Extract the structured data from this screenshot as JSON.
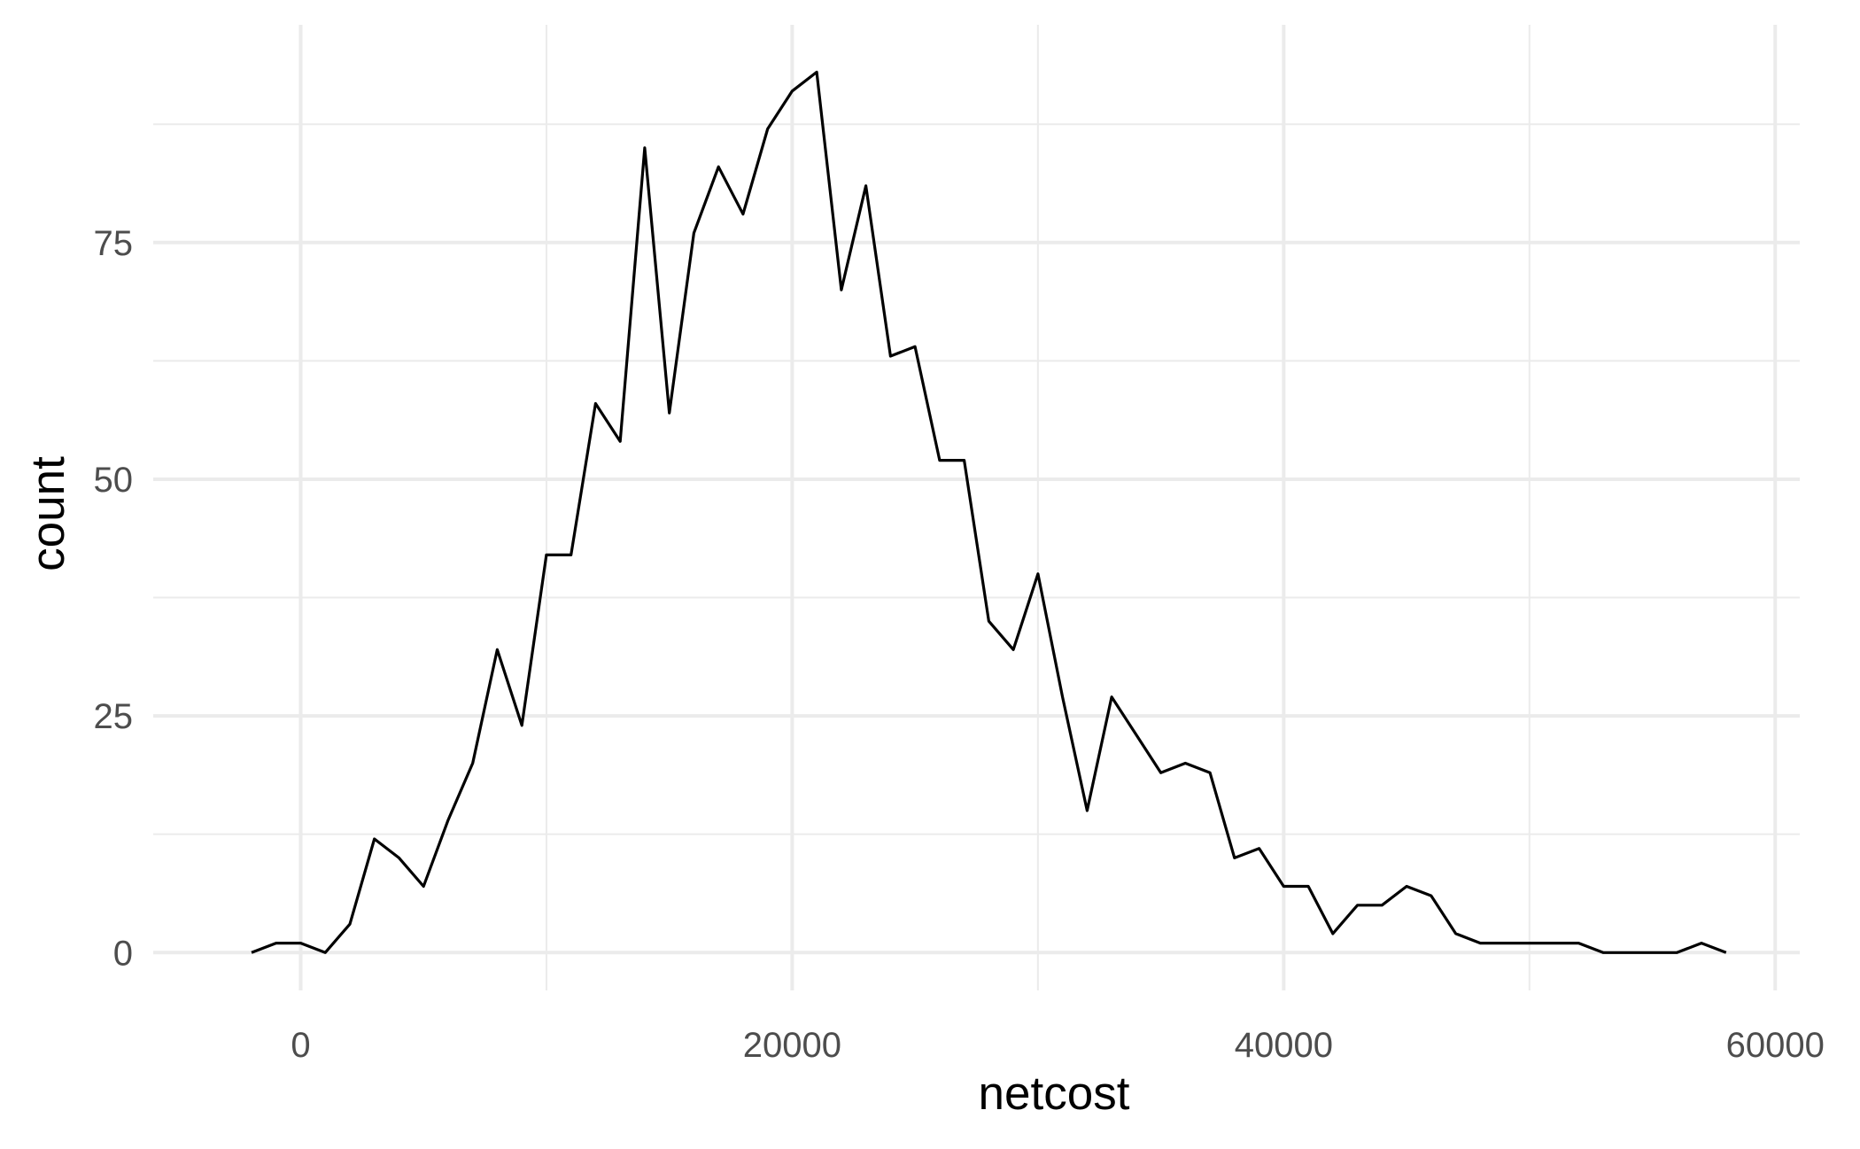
{
  "chart_data": {
    "type": "line",
    "title": "",
    "xlabel": "netcost",
    "ylabel": "count",
    "xlim": [
      -6000,
      61000
    ],
    "ylim": [
      -4,
      98
    ],
    "x_ticks": [
      0,
      20000,
      40000,
      60000
    ],
    "x_tick_labels": [
      "0",
      "20000",
      "40000",
      "60000"
    ],
    "x_minor_ticks": [
      10000,
      30000,
      50000
    ],
    "y_ticks": [
      0,
      25,
      50,
      75
    ],
    "y_tick_labels": [
      "0",
      "25",
      "50",
      "75"
    ],
    "y_minor_ticks": [
      12.5,
      37.5,
      62.5,
      87.5
    ],
    "grid": true,
    "legend": "none",
    "line_color": "#000000",
    "grid_color": "#ebebeb",
    "series": [
      {
        "x": [
          -2000,
          -1000,
          0,
          1000,
          2000,
          3000,
          4000,
          5000,
          6000,
          7000,
          8000,
          9000,
          10000,
          11000,
          12000,
          13000,
          14000,
          15000,
          16000,
          17000,
          18000,
          19000,
          20000,
          21000,
          22000,
          23000,
          24000,
          25000,
          26000,
          27000,
          28000,
          29000,
          30000,
          31000,
          32000,
          33000,
          34000,
          35000,
          36000,
          37000,
          38000,
          39000,
          40000,
          41000,
          42000,
          43000,
          44000,
          45000,
          46000,
          47000,
          48000,
          49000,
          50000,
          51000,
          52000,
          53000,
          54000,
          55000,
          56000,
          57000,
          58000
        ],
        "y": [
          0,
          1,
          1,
          0,
          3,
          12,
          10,
          7,
          14,
          20,
          32,
          24,
          42,
          42,
          58,
          54,
          85,
          57,
          76,
          83,
          78,
          87,
          91,
          93,
          70,
          81,
          63,
          64,
          52,
          52,
          35,
          32,
          40,
          27,
          15,
          27,
          23,
          19,
          20,
          19,
          10,
          11,
          7,
          7,
          2,
          5,
          5,
          7,
          6,
          2,
          1,
          1,
          1,
          1,
          1,
          0,
          0,
          0,
          0,
          1,
          0
        ]
      }
    ]
  }
}
